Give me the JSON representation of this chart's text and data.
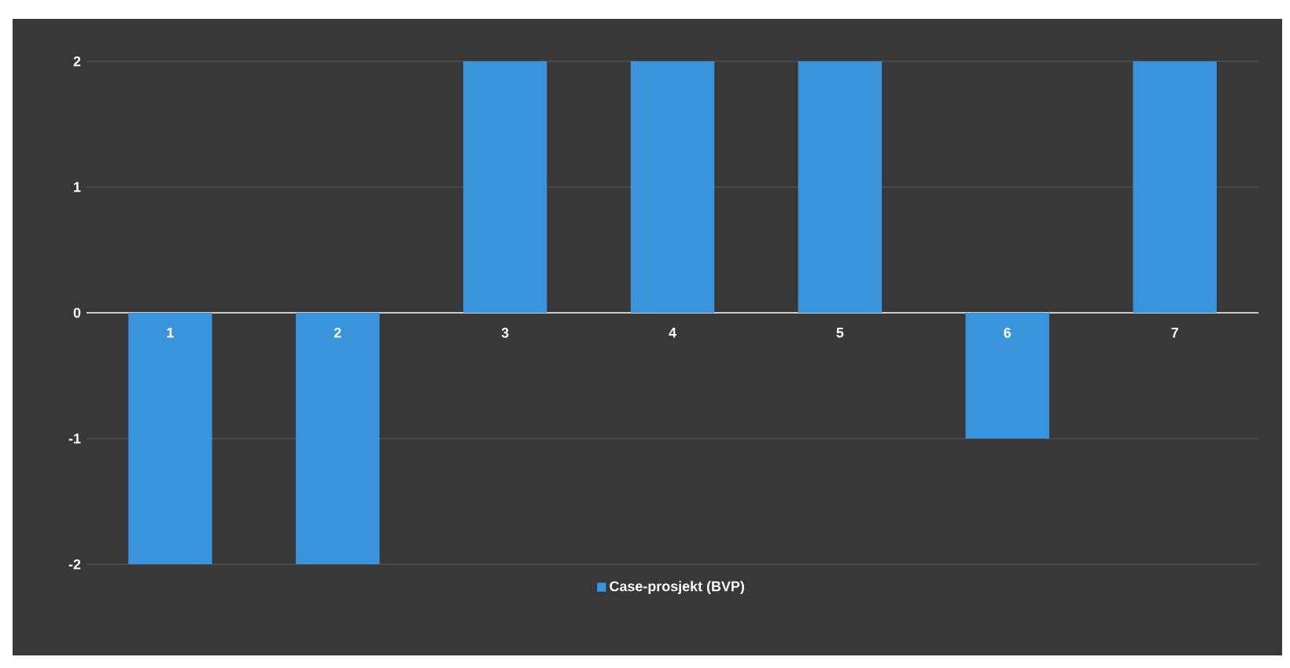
{
  "chart_data": {
    "type": "bar",
    "categories": [
      "1",
      "2",
      "3",
      "4",
      "5",
      "6",
      "7"
    ],
    "series": [
      {
        "name": "Case-prosjekt (BVP)",
        "color": "#3a94dc",
        "values": [
          -2,
          -2,
          2,
          2,
          2,
          -1,
          2
        ]
      }
    ],
    "ylim": [
      -2,
      2
    ],
    "yticks": [
      -2,
      -1,
      0,
      1,
      2
    ],
    "grid": "y",
    "legend": "bottom"
  }
}
